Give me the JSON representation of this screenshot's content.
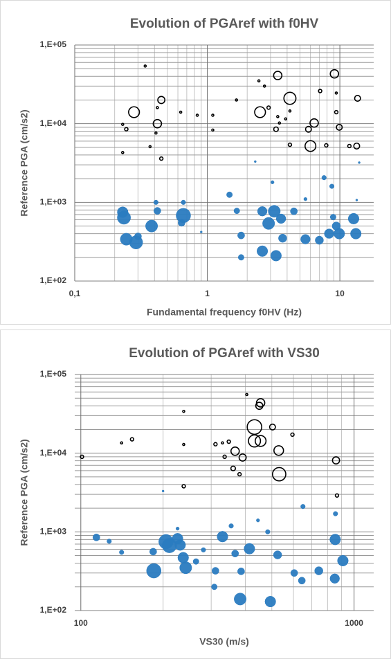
{
  "chart_data": [
    {
      "type": "bubble",
      "title": "Evolution of PGAref with f0HV",
      "x_label": "Fundamental frequency f0HV (Hz)",
      "y_label": "Reference PGA (cm/s2)",
      "x_log": true,
      "y_log": true,
      "grid": true,
      "minor_grid": true,
      "xlim": [
        0.1,
        18
      ],
      "xticks": [
        {
          "value": 0.1,
          "label": "0,1"
        },
        1,
        10
      ],
      "ylim": [
        100,
        100000
      ],
      "yticks": [
        {
          "value": 100,
          "label": "1,E+02"
        },
        {
          "value": 1000,
          "label": "1,E+03"
        },
        {
          "value": 10000,
          "label": "1,E+04"
        },
        {
          "value": 100000,
          "label": "1,E+05"
        }
      ],
      "series": [
        {
          "color": "#2a7bc0",
          "filled": true,
          "x": [
            0.23,
            0.235,
            0.245,
            0.29,
            0.3,
            0.38,
            0.41,
            0.42,
            0.66,
            0.66,
            0.64,
            1.47,
            1.67,
            1.8,
            1.8,
            2.6,
            2.9,
            3.2,
            3.6,
            2.6,
            3.3,
            3.7,
            4.5,
            5.5,
            7.0,
            8.3,
            9.4,
            9.9,
            12.7,
            13.2,
            7.6,
            13.4,
            14,
            8.7,
            8.9,
            5.5,
            3.1,
            0.9,
            2.3
          ],
          "values": [
            750,
            640,
            340,
            310,
            370,
            500,
            1000,
            780,
            680,
            1000,
            550,
            1250,
            780,
            380,
            200,
            770,
            540,
            770,
            620,
            240,
            210,
            350,
            770,
            340,
            330,
            400,
            500,
            400,
            620,
            400,
            2060,
            1070,
            3200,
            1600,
            650,
            1100,
            1800,
            420,
            3300
          ],
          "sizes": [
            8,
            10,
            9,
            10,
            5,
            9,
            3,
            5,
            11,
            3,
            5,
            4,
            4,
            5,
            4,
            7,
            9,
            9,
            7,
            8,
            8,
            6,
            5,
            7,
            6,
            7,
            6,
            8,
            8,
            8,
            3,
            1,
            1,
            3,
            4,
            2,
            2,
            1,
            1
          ]
        },
        {
          "color": "#000000",
          "filled": false,
          "x": [
            0.34,
            0.28,
            0.45,
            0.42,
            0.245,
            0.23,
            0.42,
            0.45,
            0.37,
            0.23,
            0.63,
            0.84,
            0.41,
            1.1,
            1.1,
            1.66,
            2.45,
            3.4,
            2.5,
            4.2,
            2.7,
            2.9,
            3.4,
            3.5,
            3.3,
            3.9,
            4.2,
            4.2,
            6.0,
            5.8,
            6.4,
            9.1,
            9.9,
            9.4,
            7.9,
            9.4,
            13.6,
            13.4,
            11.8,
            7.1
          ],
          "values": [
            54000,
            14000,
            20000,
            10000,
            8500,
            9800,
            16000,
            3600,
            5100,
            4300,
            14000,
            12800,
            7600,
            12800,
            8300,
            20000,
            35000,
            41000,
            14000,
            21000,
            30000,
            16000,
            12300,
            10200,
            8500,
            11500,
            5400,
            14500,
            5200,
            8500,
            10200,
            43000,
            9000,
            14000,
            5300,
            24500,
            21000,
            5200,
            5200,
            26000
          ],
          "sizes": [
            1,
            8,
            5,
            6,
            2,
            1,
            1,
            2,
            1,
            1,
            1,
            1,
            1,
            1,
            1,
            1,
            1,
            6,
            8,
            9,
            1,
            2,
            1,
            1,
            3,
            1,
            2,
            1,
            8,
            4,
            6,
            6,
            4,
            2,
            2,
            1,
            4,
            4,
            2,
            2
          ]
        }
      ]
    },
    {
      "type": "bubble",
      "title": "Evolution of PGAref with VS30",
      "x_label": "VS30 (m/s)",
      "y_label": "Reference PGA (cm/s2)",
      "x_log": true,
      "y_log": true,
      "grid": true,
      "minor_grid": true,
      "xlim": [
        95,
        1180
      ],
      "xticks": [
        100,
        1000
      ],
      "ylim": [
        100,
        100000
      ],
      "yticks": [
        {
          "value": 100,
          "label": "1,E+02"
        },
        {
          "value": 1000,
          "label": "1,E+03"
        },
        {
          "value": 10000,
          "label": "1,E+04"
        },
        {
          "value": 100000,
          "label": "1,E+05"
        }
      ],
      "series": [
        {
          "color": "#2a7bc0",
          "filled": true,
          "x": [
            114,
            127,
            141,
            185,
            184,
            205,
            211,
            226,
            231,
            237,
            242,
            264,
            281,
            311,
            308,
            330,
            355,
            367,
            386,
            383,
            414,
            494,
            483,
            525,
            604,
            644,
            743,
            850,
            853,
            910,
            226,
            650,
            855,
            445,
            200
          ],
          "values": [
            850,
            760,
            550,
            320,
            560,
            750,
            670,
            820,
            680,
            470,
            350,
            420,
            590,
            320,
            200,
            870,
            1190,
            530,
            315,
            140,
            610,
            130,
            1000,
            510,
            300,
            240,
            320,
            255,
            800,
            430,
            1100,
            2100,
            1700,
            1400,
            3300
          ],
          "sizes": [
            5,
            3,
            3,
            11,
            5,
            11,
            11,
            8,
            8,
            8,
            9,
            4,
            3,
            5,
            4,
            8,
            3,
            5,
            5,
            9,
            8,
            8,
            3,
            6,
            5,
            5,
            6,
            7,
            8,
            8,
            2,
            3,
            3,
            2,
            1
          ]
        },
        {
          "color": "#000000",
          "filled": false,
          "x": [
            101,
            141,
            154,
            238,
            238,
            405,
            455,
            450,
            432,
            432,
            455,
            367,
            391,
            530,
            532,
            503,
            330,
            336,
            361,
            381,
            348,
            311,
            595,
            859,
            866,
            238
          ],
          "values": [
            9000,
            13500,
            15000,
            34000,
            12900,
            55600,
            43600,
            40000,
            21500,
            14300,
            14300,
            10600,
            8800,
            10800,
            5400,
            21500,
            13500,
            9000,
            6400,
            5400,
            14000,
            13000,
            17200,
            8100,
            2900,
            3800
          ],
          "sizes": [
            2,
            1,
            2,
            1,
            1,
            1,
            6,
            5,
            11,
            9,
            8,
            6,
            5,
            7,
            10,
            4,
            1,
            2,
            3,
            2,
            2,
            2,
            2,
            5,
            2,
            2
          ]
        }
      ]
    }
  ]
}
